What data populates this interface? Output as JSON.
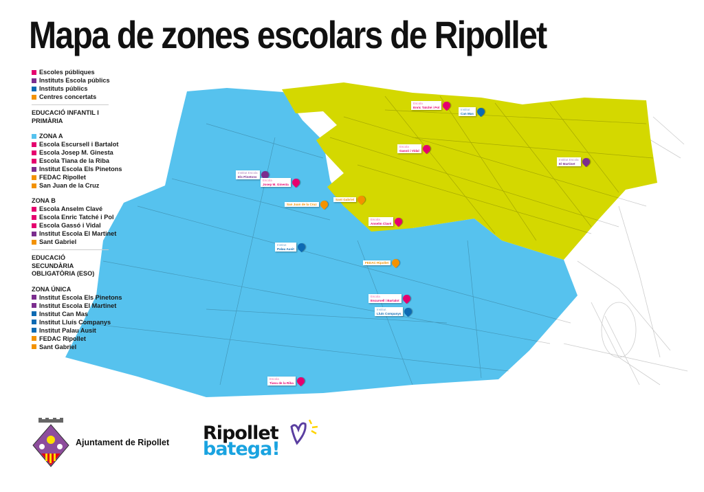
{
  "title": "Mapa de zones escolars de Ripollet",
  "colors": {
    "zona_a": "#56c2ee",
    "zona_b": "#d4d800",
    "escoles_publiques": "#e5006e",
    "instituts_escola": "#7b2d8e",
    "instituts_publics": "#0d6ab3",
    "centres_concertats": "#f39200"
  },
  "legend": {
    "types": [
      "Escoles públiques",
      "Instituts Escola públics",
      "Instituts públics",
      "Centres concertats"
    ],
    "section1": "EDUCACIÓ INFANTIL I PRIMÀRIA",
    "zona_a": {
      "label": "ZONA A",
      "items": [
        "Escola Escursell i Bartalot",
        "Escola Josep M. Ginesta",
        "Escola Tiana de la Riba",
        "Institut Escola Els Pinetons",
        "FEDAC Ripollet",
        "San Juan de la Cruz"
      ]
    },
    "zona_b": {
      "label": "ZONA B",
      "items": [
        "Escola Anselm Clavé",
        "Escola Enric Tatché i Pol",
        "Escola Gassó i Vidal",
        "Institut Escola El Martinet",
        "Sant Gabriel"
      ]
    },
    "section2": "EDUCACIÓ SECUNDÀRIA OBLIGATÒRIA (ESO)",
    "zona_unica": {
      "label": "ZONA ÚNICA",
      "items": [
        "Institut Escola Els Pinetons",
        "Institut Escola El Martinet",
        "Institut Can Mas",
        "Institut Lluís Companys",
        "Institut Palau Ausit",
        "FEDAC Ripollet",
        "Sant Gabriel"
      ]
    }
  },
  "markers": [
    {
      "pre": "Escola",
      "name": "Enric Tatché i Pol",
      "type": "escoles_publiques"
    },
    {
      "pre": "Institut",
      "name": "Can Mas",
      "type": "instituts_publics"
    },
    {
      "pre": "Escola",
      "name": "Gassó i Vidal",
      "type": "escoles_publiques"
    },
    {
      "pre": "Institut Escola",
      "name": "El Martinet",
      "type": "instituts_escola"
    },
    {
      "pre": "Institut Escola",
      "name": "Els Pinetons",
      "type": "instituts_escola"
    },
    {
      "pre": "Escola",
      "name": "Josep M. Ginesta",
      "type": "escoles_publiques"
    },
    {
      "pre": "",
      "name": "San Juan de la Cruz",
      "type": "centres_concertats"
    },
    {
      "pre": "",
      "name": "Sant Gabriel",
      "type": "centres_concertats"
    },
    {
      "pre": "Escola",
      "name": "Anselm Clavé",
      "type": "escoles_publiques"
    },
    {
      "pre": "Institut",
      "name": "Palau Ausit",
      "type": "instituts_publics"
    },
    {
      "pre": "",
      "name": "FEDAC-Ripollet",
      "type": "centres_concertats"
    },
    {
      "pre": "Escola",
      "name": "Escursell i Bartalot",
      "type": "escoles_publiques"
    },
    {
      "pre": "Institut",
      "name": "Lluís Companys",
      "type": "instituts_publics"
    },
    {
      "pre": "Escola",
      "name": "Tiana de la Riba",
      "type": "escoles_publiques"
    }
  ],
  "footer": {
    "ajuntament": "Ajuntament de Ripollet",
    "brand_line1": "Ripollet",
    "brand_line2": "batega!"
  }
}
